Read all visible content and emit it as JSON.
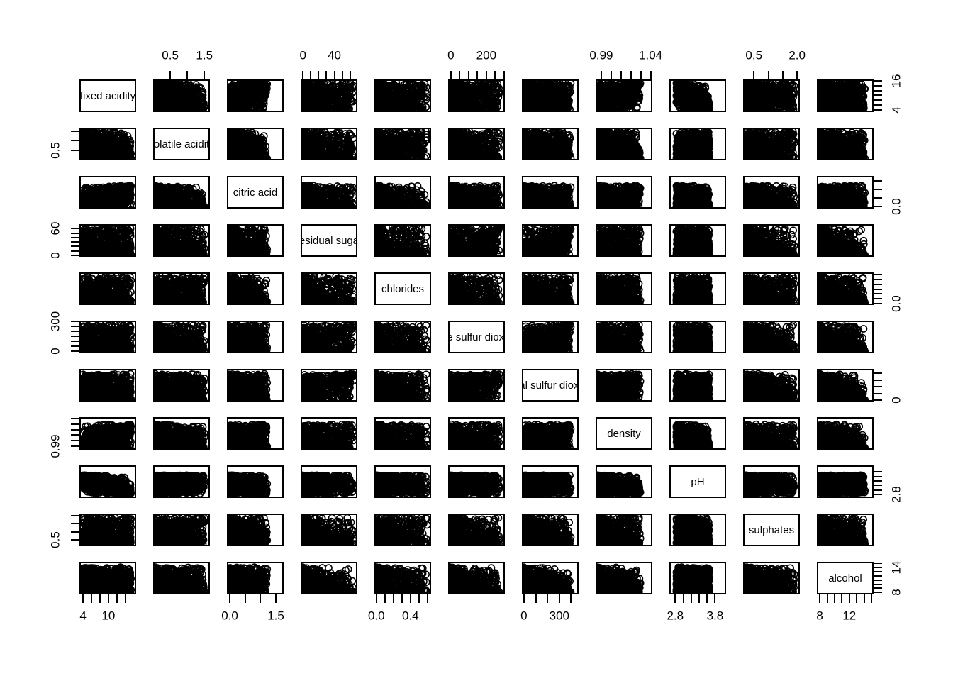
{
  "figure": {
    "background": "#ffffff",
    "point_color": "#000000",
    "axis_color": "#000000",
    "title": ""
  },
  "chart_data": {
    "type": "scatter",
    "layout": "pairs-scatterplot-matrix",
    "n_variables": 11,
    "grid": [
      "fixed acidity",
      "volatile acidity",
      "citric acid",
      "residual sugar",
      "chlorides",
      "free sulfur dioxide",
      "total sulfur dioxide",
      "density",
      "pH",
      "sulphates",
      "alcohol"
    ],
    "marker": "open-circle",
    "render_estimate": {
      "n_points": 820,
      "point_radius_px": 4.6,
      "heavily_overplotted": true
    },
    "variables": [
      {
        "name": "fixed acidity",
        "range": [
          3.3,
          16.4
        ],
        "col_axis": {
          "side": "bottom",
          "ticks": [
            4,
            6,
            8,
            10,
            12,
            14
          ],
          "labels": [
            {
              "value": 4,
              "text": "4"
            },
            {
              "value": 10,
              "text": "10"
            }
          ]
        },
        "row_axis": {
          "side": "right",
          "ticks": [
            4,
            6,
            8,
            10,
            12,
            14,
            16
          ],
          "labels": [
            {
              "value": 4,
              "text": "4"
            },
            {
              "value": 16,
              "text": "16"
            }
          ]
        },
        "sampler": {
          "k": 1.5,
          "offset": 0.04,
          "scale": 0.9,
          "loadings": [
            0.8,
            0,
            0.15
          ],
          "noise": 0.55
        }
      },
      {
        "name": "volatile acidity",
        "range": [
          0.02,
          1.64
        ],
        "col_axis": {
          "side": "top",
          "ticks": [
            0.5,
            1.0,
            1.5
          ],
          "labels": [
            {
              "value": 0.5,
              "text": "0.5"
            },
            {
              "value": 1.5,
              "text": "1.5"
            }
          ]
        },
        "row_axis": {
          "side": "left",
          "ticks": [
            0.5,
            1.0,
            1.5
          ],
          "labels": [
            {
              "value": 0.5,
              "text": "0.5"
            }
          ]
        },
        "sampler": {
          "k": 2.0,
          "offset": 0.01,
          "scale": 0.92,
          "loadings": [
            -0.3,
            0.55,
            0
          ],
          "noise": 0.72
        }
      },
      {
        "name": "citric acid",
        "range": [
          -0.07,
          1.73
        ],
        "col_axis": {
          "side": "bottom",
          "ticks": [
            0,
            0.5,
            1.0,
            1.5
          ],
          "labels": [
            {
              "value": 0,
              "text": "0.0"
            },
            {
              "value": 1.5,
              "text": "1.5"
            }
          ]
        },
        "row_axis": {
          "side": "right",
          "ticks": [
            0,
            0.5,
            1.0,
            1.5
          ],
          "labels": [
            {
              "value": 0,
              "text": "0.0"
            }
          ]
        },
        "sampler": {
          "k": 2.0,
          "offset": 0.005,
          "scale": 0.72,
          "loadings": [
            0.55,
            -0.35,
            0.1
          ],
          "noise": 0.65
        }
      },
      {
        "name": "residual sugar",
        "range": [
          -2.0,
          68.4
        ],
        "col_axis": {
          "side": "top",
          "ticks": [
            0,
            10,
            20,
            30,
            40,
            50,
            60
          ],
          "labels": [
            {
              "value": 0,
              "text": "0"
            },
            {
              "value": 40,
              "text": "40"
            }
          ]
        },
        "row_axis": {
          "side": "left",
          "ticks": [
            0,
            10,
            20,
            30,
            40,
            50,
            60
          ],
          "labels": [
            {
              "value": 0,
              "text": "0"
            },
            {
              "value": 60,
              "text": "60"
            }
          ]
        },
        "sampler": {
          "k": 3.4,
          "offset": 0.01,
          "scale": 0.95,
          "loadings": [
            0,
            0,
            0.7
          ],
          "noise": 0.7
        }
      },
      {
        "name": "chlorides",
        "range": [
          -0.015,
          0.635
        ],
        "col_axis": {
          "side": "bottom",
          "ticks": [
            0,
            0.1,
            0.2,
            0.3,
            0.4,
            0.5,
            0.6
          ],
          "labels": [
            {
              "value": 0,
              "text": "0.0"
            },
            {
              "value": 0.4,
              "text": "0.4"
            }
          ]
        },
        "row_axis": {
          "side": "right",
          "ticks": [
            0,
            0.1,
            0.2,
            0.3,
            0.4,
            0.5,
            0.6
          ],
          "labels": [
            {
              "value": 0,
              "text": "0.0"
            }
          ]
        },
        "sampler": {
          "k": 3.8,
          "offset": 0.012,
          "scale": 0.95,
          "loadings": [
            0,
            0.6,
            0.1
          ],
          "noise": 0.75
        }
      },
      {
        "name": "free sulfur dioxide",
        "range": [
          -11.6,
          300.6
        ],
        "col_axis": {
          "side": "top",
          "ticks": [
            0,
            50,
            100,
            150,
            200,
            250,
            300
          ],
          "labels": [
            {
              "value": 0,
              "text": "0"
            },
            {
              "value": 200,
              "text": "200"
            }
          ]
        },
        "row_axis": {
          "side": "left",
          "ticks": [
            0,
            50,
            100,
            150,
            200,
            250,
            300
          ],
          "labels": [
            {
              "value": 0,
              "text": "0"
            },
            {
              "value": 300,
              "text": "300"
            }
          ]
        },
        "sampler": {
          "k": 2.8,
          "offset": 0.008,
          "scale": 0.92,
          "loadings": [
            0,
            0.05,
            0.6
          ],
          "noise": 0.7
        }
      },
      {
        "name": "total sulfur dioxide",
        "range": [
          -11.4,
          457.4
        ],
        "col_axis": {
          "side": "bottom",
          "ticks": [
            0,
            100,
            200,
            300,
            400
          ],
          "labels": [
            {
              "value": 0,
              "text": "0"
            },
            {
              "value": 300,
              "text": "300"
            }
          ]
        },
        "row_axis": {
          "side": "right",
          "ticks": [
            0,
            100,
            200,
            300,
            400
          ],
          "labels": [
            {
              "value": 0,
              "text": "0"
            }
          ]
        },
        "sampler": {
          "k": 2.3,
          "offset": 0.008,
          "scale": 0.88,
          "loadings": [
            -0.1,
            0.1,
            0.8
          ],
          "noise": 0.55
        }
      },
      {
        "name": "density",
        "range": [
          0.985,
          1.041
        ],
        "col_axis": {
          "side": "top",
          "ticks": [
            0.99,
            1.0,
            1.01,
            1.02,
            1.03,
            1.04
          ],
          "labels": [
            {
              "value": 0.99,
              "text": "0.99"
            },
            {
              "value": 1.04,
              "text": "1.04"
            }
          ]
        },
        "row_axis": {
          "side": "left",
          "ticks": [
            0.99,
            1.0,
            1.01,
            1.02,
            1.03,
            1.04
          ],
          "labels": [
            {
              "value": 0.99,
              "text": "0.99"
            }
          ]
        },
        "sampler": {
          "k": 2.9,
          "offset": 0.012,
          "scale": 0.8,
          "loadings": [
            0.5,
            0.15,
            0.45
          ],
          "noise": 0.6
        }
      },
      {
        "name": "pH",
        "range": [
          2.67,
          4.06
        ],
        "col_axis": {
          "side": "bottom",
          "ticks": [
            2.8,
            3.0,
            3.2,
            3.4,
            3.6,
            3.8
          ],
          "labels": [
            {
              "value": 2.8,
              "text": "2.8"
            },
            {
              "value": 3.8,
              "text": "3.8"
            }
          ]
        },
        "row_axis": {
          "side": "right",
          "ticks": [
            2.8,
            3.0,
            3.2,
            3.4,
            3.6,
            3.8
          ],
          "labels": [
            {
              "value": 2.8,
              "text": "2.8"
            }
          ]
        },
        "sampler": {
          "k": 1.0,
          "offset": 0.1,
          "scale": 0.62,
          "loadings": [
            -0.75,
            0,
            0
          ],
          "noise": 0.66
        }
      },
      {
        "name": "sulphates",
        "range": [
          0.15,
          2.07
        ],
        "col_axis": {
          "side": "top",
          "ticks": [
            0.5,
            1.0,
            1.5,
            2.0
          ],
          "labels": [
            {
              "value": 0.5,
              "text": "0.5"
            },
            {
              "value": 2.0,
              "text": "2.0"
            }
          ]
        },
        "row_axis": {
          "side": "left",
          "ticks": [
            0.5,
            1.0,
            1.5,
            2.0
          ],
          "labels": [
            {
              "value": 0.5,
              "text": "0.5"
            }
          ]
        },
        "sampler": {
          "k": 2.5,
          "offset": 0.03,
          "scale": 0.9,
          "loadings": [
            0.2,
            0.5,
            -0.1
          ],
          "noise": 0.8
        }
      },
      {
        "name": "alcohol",
        "range": [
          7.7,
          15.2
        ],
        "col_axis": {
          "side": "bottom",
          "ticks": [
            8,
            9,
            10,
            11,
            12,
            13,
            14,
            15
          ],
          "labels": [
            {
              "value": 8,
              "text": "8"
            },
            {
              "value": 12,
              "text": "12"
            }
          ]
        },
        "row_axis": {
          "side": "right",
          "ticks": [
            8,
            9,
            10,
            11,
            12,
            13,
            14,
            15
          ],
          "labels": [
            {
              "value": 8,
              "text": "8"
            },
            {
              "value": 14,
              "text": "14"
            }
          ]
        },
        "sampler": {
          "k": 1.9,
          "offset": 0.03,
          "scale": 0.85,
          "loadings": [
            0,
            -0.2,
            -0.55
          ],
          "noise": 0.75
        }
      }
    ]
  }
}
